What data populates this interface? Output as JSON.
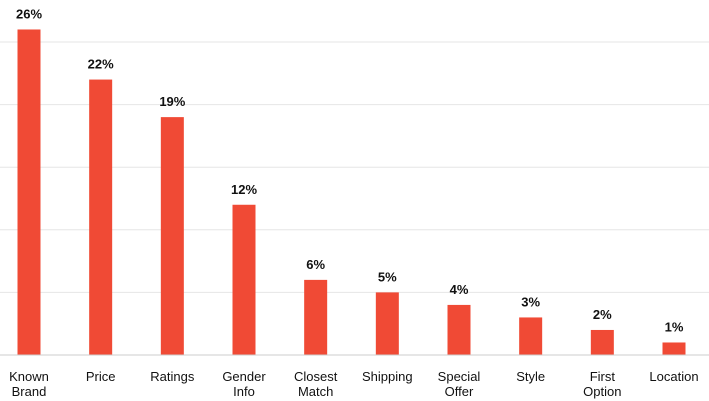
{
  "chart_data": {
    "type": "bar",
    "categories": [
      [
        "Known",
        "Brand"
      ],
      [
        "Price"
      ],
      [
        "Ratings"
      ],
      [
        "Gender",
        "Info"
      ],
      [
        "Closest",
        "Match"
      ],
      [
        "Shipping"
      ],
      [
        "Special",
        "Offer"
      ],
      [
        "Style"
      ],
      [
        "First",
        "Option"
      ],
      [
        "Location"
      ]
    ],
    "values": [
      26,
      22,
      19,
      12,
      6,
      5,
      4,
      3,
      2,
      1
    ],
    "value_labels": [
      "26%",
      "22%",
      "19%",
      "12%",
      "6%",
      "5%",
      "4%",
      "3%",
      "2%",
      "1%"
    ],
    "ylim": [
      0,
      25
    ],
    "gridline_values": [
      5,
      10,
      15,
      20,
      25
    ],
    "grid": true,
    "bar_color": "#f04a35",
    "grid_color": "#e6e6e6",
    "baseline_color": "#cccccc"
  }
}
